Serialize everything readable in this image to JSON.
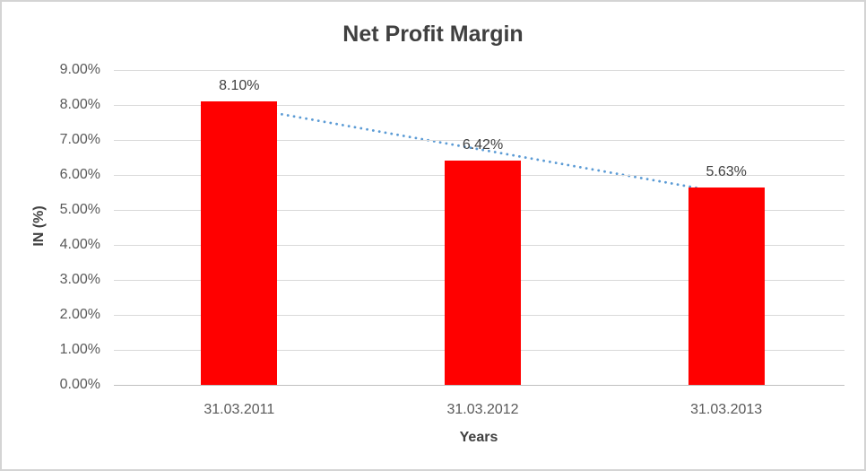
{
  "chart_data": {
    "type": "bar",
    "title": "Net Profit Margin",
    "categories": [
      "31.03.2011",
      "31.03.2012",
      "31.03.2013"
    ],
    "values": [
      8.1,
      6.42,
      5.63
    ],
    "data_labels": [
      "8.10%",
      "6.42%",
      "5.63%"
    ],
    "xlabel": "Years",
    "ylabel": "IN (%)",
    "ylim": [
      0,
      9
    ],
    "ytick_step": 1,
    "ytick_labels": [
      "0.00%",
      "1.00%",
      "2.00%",
      "3.00%",
      "4.00%",
      "5.00%",
      "6.00%",
      "7.00%",
      "8.00%",
      "9.00%"
    ],
    "grid": true,
    "legend_position": "none",
    "trendline": {
      "type": "linear",
      "style": "dotted",
      "start_value": 7.95,
      "end_value": 5.48
    }
  },
  "colors": {
    "bar": "#FF0000",
    "trendline": "#5B9BD5",
    "title_text": "#404040",
    "label_text": "#404040",
    "tick_text": "#595959",
    "gridline": "#D9D9D9",
    "axis_line": "#BFBFBF",
    "frame_border": "#D4D4D4",
    "background": "#FFFFFF"
  }
}
